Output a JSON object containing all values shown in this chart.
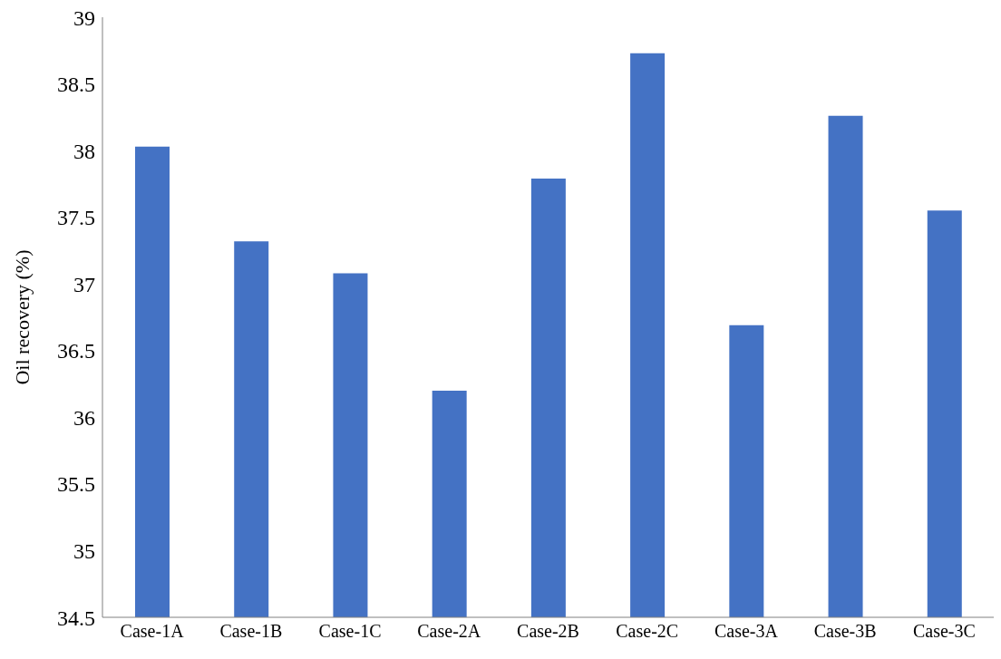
{
  "chart_data": {
    "type": "bar",
    "ylabel": "Oil recovery (%)",
    "categories": [
      "Case-1A",
      "Case-1B",
      "Case-1C",
      "Case-2A",
      "Case-2B",
      "Case-2C",
      "Case-3A",
      "Case-3B",
      "Case-3C"
    ],
    "values": [
      38.03,
      37.32,
      37.08,
      36.2,
      37.79,
      38.73,
      36.69,
      38.26,
      37.55
    ],
    "color": "#4472c4",
    "ylim": [
      34.5,
      39
    ],
    "yticks": [
      34.5,
      35,
      35.5,
      36,
      36.5,
      37,
      37.5,
      38,
      38.5,
      39
    ],
    "grid": false,
    "legend": false
  }
}
